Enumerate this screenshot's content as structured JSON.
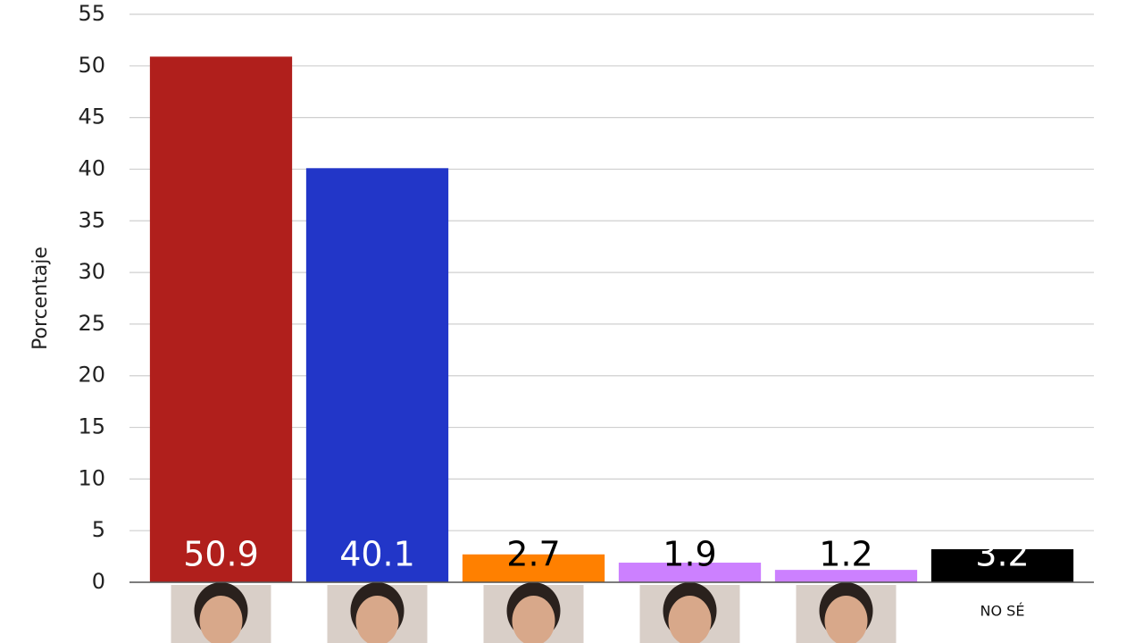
{
  "chart_data": {
    "type": "bar",
    "y_label": "Porcentaje",
    "categories": [
      null,
      null,
      null,
      null,
      null,
      "NO SÉ"
    ],
    "values": [
      50.9,
      40.1,
      2.7,
      1.9,
      1.2,
      3.2
    ],
    "colors": [
      "#b01f1c",
      "#2236c8",
      "#ff8000",
      "#cc80ff",
      "#cc80ff",
      "#000000"
    ],
    "ylim": [
      0,
      55
    ],
    "yticks": [
      0,
      5,
      10,
      15,
      20,
      25,
      30,
      35,
      40,
      45,
      50,
      55
    ],
    "grid": true
  }
}
